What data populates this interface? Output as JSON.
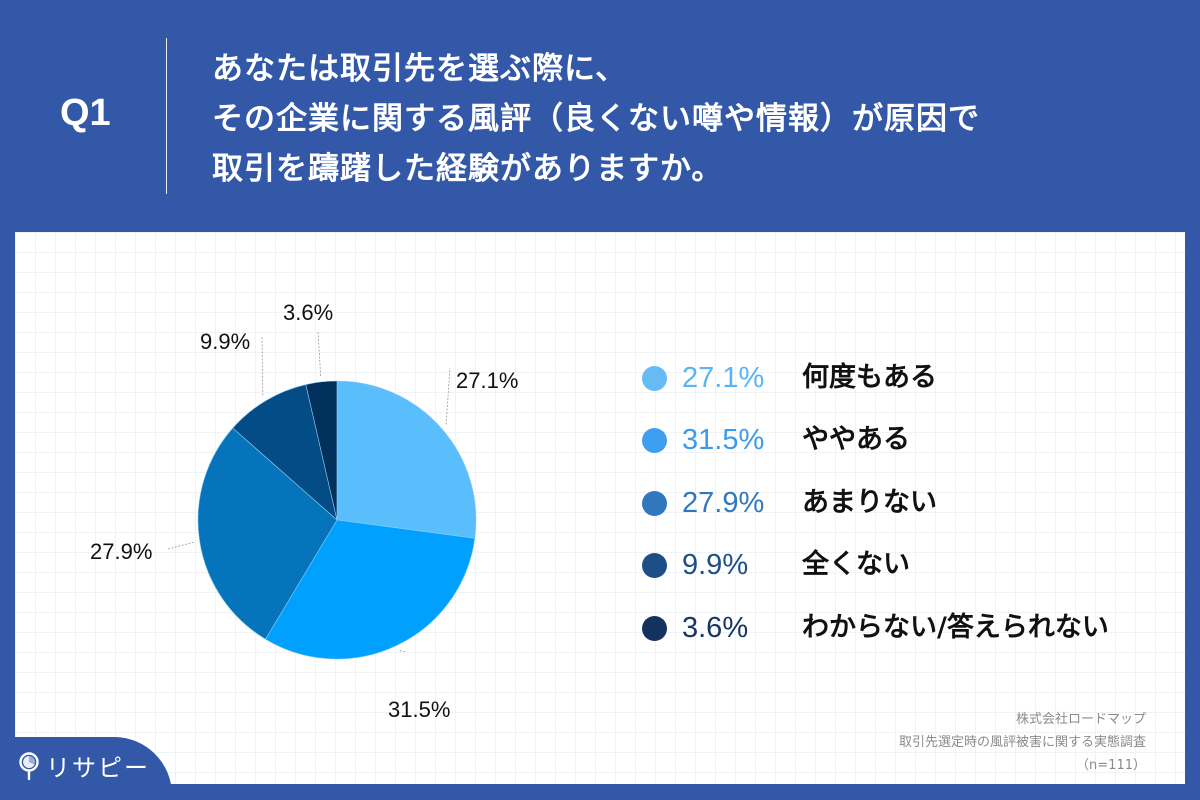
{
  "header": {
    "question_number": "Q1",
    "title_lines": [
      "あなたは取引先を選ぶ際に、",
      "その企業に関する風評（良くない噂や情報）が原因で",
      "取引を躊躇した経験がありますか。"
    ]
  },
  "chart_data": {
    "type": "pie",
    "title": "あなたは取引先を選ぶ際に、その企業に関する風評（良くない噂や情報）が原因で取引を躊躇した経験がありますか。",
    "categories": [
      "何度もある",
      "ややある",
      "あまりない",
      "全くない",
      "わからない/答えられない"
    ],
    "values": [
      27.1,
      31.5,
      27.9,
      9.9,
      3.6
    ],
    "labels": [
      "27.1%",
      "31.5%",
      "27.9%",
      "9.9%",
      "3.6%"
    ],
    "colors": [
      "#5BBEFC",
      "#00A1FE",
      "#0674BB",
      "#044C85",
      "#02305C"
    ],
    "start_angle": "12 o'clock, clockwise",
    "legend_position": "right",
    "n": 111
  },
  "legend": {
    "items": [
      {
        "value": "27.1%",
        "label": "何度もある",
        "dot_color": "#66BBF5",
        "value_color": "#5AB4F2"
      },
      {
        "value": "31.5%",
        "label": "ややある",
        "dot_color": "#3E9EF0",
        "value_color": "#3A9CEE"
      },
      {
        "value": "27.9%",
        "label": "あまりない",
        "dot_color": "#3077BD",
        "value_color": "#2F78BF"
      },
      {
        "value": "9.9%",
        "label": "全くない",
        "dot_color": "#1E4E86",
        "value_color": "#1F4F88"
      },
      {
        "value": "3.6%",
        "label": "わからない/答えられない",
        "dot_color": "#14325E",
        "value_color": "#173663"
      }
    ]
  },
  "source": {
    "company": "株式会社ロードマップ",
    "survey": "取引先選定時の風評被害に関する実態調査",
    "sample": "（n=111）"
  },
  "brand": {
    "logo_text": "リサピー",
    "background_color": "#3358A8"
  }
}
